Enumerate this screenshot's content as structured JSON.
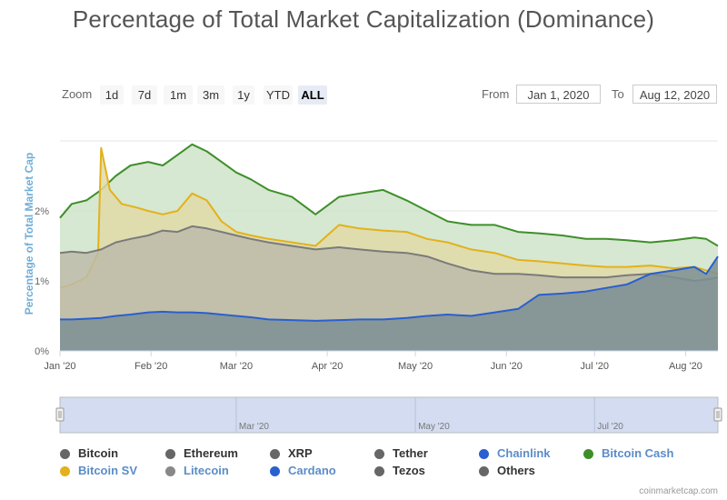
{
  "title": "Percentage of Total Market Capitalization (Dominance)",
  "zoom": {
    "label": "Zoom",
    "buttons": [
      "1d",
      "7d",
      "1m",
      "3m",
      "1y",
      "YTD",
      "ALL"
    ],
    "active": "ALL"
  },
  "range": {
    "from_label": "From",
    "from_value": "Jan 1, 2020",
    "to_label": "To",
    "to_value": "Aug 12, 2020"
  },
  "credit": "coinmarketcap.com",
  "colors": {
    "bitcoin_cash": "#3e8f2a",
    "bitcoin_sv": "#e3b11a",
    "others": "#7a7a7a",
    "cardano": "#2a5fcf",
    "navigator": "#d3dcf0"
  },
  "chart_data": {
    "type": "area",
    "ylabel": "Percentage of Total Market Cap",
    "y_ticks": [
      "0%",
      "1%",
      "2%"
    ],
    "ylim": [
      0,
      3.0
    ],
    "x_ticks": [
      "Jan '20",
      "Feb '20",
      "Mar '20",
      "Apr '20",
      "May '20",
      "Jun '20",
      "Jul '20",
      "Aug '20"
    ],
    "x_range": [
      "2020-01-01",
      "2020-08-12"
    ],
    "navigator_ticks": [
      "Mar '20",
      "May '20",
      "Jul '20"
    ],
    "grid": true,
    "legend_position": "bottom",
    "series": [
      {
        "name": "Bitcoin Cash",
        "color": "#3e8f2a",
        "fill": "#cfe4c9",
        "x": [
          "2020-01-01",
          "2020-01-05",
          "2020-01-10",
          "2020-01-15",
          "2020-01-20",
          "2020-01-25",
          "2020-01-31",
          "2020-02-05",
          "2020-02-10",
          "2020-02-15",
          "2020-02-20",
          "2020-02-25",
          "2020-03-01",
          "2020-03-06",
          "2020-03-12",
          "2020-03-20",
          "2020-03-28",
          "2020-04-05",
          "2020-04-12",
          "2020-04-20",
          "2020-04-28",
          "2020-05-05",
          "2020-05-12",
          "2020-05-20",
          "2020-05-28",
          "2020-06-05",
          "2020-06-12",
          "2020-06-20",
          "2020-06-28",
          "2020-07-05",
          "2020-07-12",
          "2020-07-20",
          "2020-07-28",
          "2020-08-04",
          "2020-08-08",
          "2020-08-12"
        ],
        "values": [
          1.9,
          2.1,
          2.15,
          2.3,
          2.5,
          2.65,
          2.7,
          2.65,
          2.8,
          2.95,
          2.85,
          2.7,
          2.55,
          2.45,
          2.3,
          2.2,
          1.95,
          2.2,
          2.25,
          2.3,
          2.15,
          2.0,
          1.85,
          1.8,
          1.8,
          1.7,
          1.68,
          1.65,
          1.6,
          1.6,
          1.58,
          1.55,
          1.58,
          1.62,
          1.6,
          1.5
        ]
      },
      {
        "name": "Bitcoin SV",
        "color": "#e3b11a",
        "fill": "#e0d9a8",
        "x": [
          "2020-01-01",
          "2020-01-05",
          "2020-01-10",
          "2020-01-14",
          "2020-01-15",
          "2020-01-18",
          "2020-01-22",
          "2020-01-27",
          "2020-01-31",
          "2020-02-05",
          "2020-02-10",
          "2020-02-15",
          "2020-02-20",
          "2020-02-25",
          "2020-03-01",
          "2020-03-06",
          "2020-03-12",
          "2020-03-20",
          "2020-03-28",
          "2020-04-05",
          "2020-04-12",
          "2020-04-20",
          "2020-04-28",
          "2020-05-05",
          "2020-05-12",
          "2020-05-20",
          "2020-05-28",
          "2020-06-05",
          "2020-06-12",
          "2020-06-20",
          "2020-06-28",
          "2020-07-05",
          "2020-07-12",
          "2020-07-20",
          "2020-07-28",
          "2020-08-04",
          "2020-08-08",
          "2020-08-12"
        ],
        "values": [
          0.9,
          0.95,
          1.05,
          1.4,
          2.9,
          2.3,
          2.1,
          2.05,
          2.0,
          1.95,
          2.0,
          2.25,
          2.15,
          1.85,
          1.7,
          1.65,
          1.6,
          1.55,
          1.5,
          1.8,
          1.75,
          1.72,
          1.7,
          1.6,
          1.55,
          1.45,
          1.4,
          1.3,
          1.28,
          1.25,
          1.22,
          1.2,
          1.2,
          1.22,
          1.18,
          1.2,
          1.15,
          1.1
        ]
      },
      {
        "name": "Others",
        "color": "#7a7a7a",
        "fill": "#bdbba9",
        "x": [
          "2020-01-01",
          "2020-01-05",
          "2020-01-10",
          "2020-01-15",
          "2020-01-20",
          "2020-01-25",
          "2020-01-31",
          "2020-02-05",
          "2020-02-10",
          "2020-02-15",
          "2020-02-20",
          "2020-02-25",
          "2020-03-01",
          "2020-03-06",
          "2020-03-12",
          "2020-03-20",
          "2020-03-28",
          "2020-04-05",
          "2020-04-12",
          "2020-04-20",
          "2020-04-28",
          "2020-05-05",
          "2020-05-12",
          "2020-05-20",
          "2020-05-28",
          "2020-06-05",
          "2020-06-12",
          "2020-06-20",
          "2020-06-28",
          "2020-07-05",
          "2020-07-12",
          "2020-07-20",
          "2020-07-28",
          "2020-08-04",
          "2020-08-08",
          "2020-08-12"
        ],
        "values": [
          1.4,
          1.42,
          1.4,
          1.45,
          1.55,
          1.6,
          1.65,
          1.72,
          1.7,
          1.78,
          1.75,
          1.7,
          1.65,
          1.6,
          1.55,
          1.5,
          1.45,
          1.48,
          1.45,
          1.42,
          1.4,
          1.35,
          1.25,
          1.15,
          1.1,
          1.1,
          1.08,
          1.05,
          1.05,
          1.05,
          1.08,
          1.1,
          1.05,
          1.0,
          1.02,
          1.05
        ]
      },
      {
        "name": "Cardano",
        "color": "#2a5fcf",
        "fill": "#7d8f94",
        "x": [
          "2020-01-01",
          "2020-01-05",
          "2020-01-10",
          "2020-01-15",
          "2020-01-20",
          "2020-01-25",
          "2020-01-31",
          "2020-02-05",
          "2020-02-10",
          "2020-02-15",
          "2020-02-20",
          "2020-02-25",
          "2020-03-01",
          "2020-03-06",
          "2020-03-12",
          "2020-03-20",
          "2020-03-28",
          "2020-04-05",
          "2020-04-12",
          "2020-04-20",
          "2020-04-28",
          "2020-05-05",
          "2020-05-12",
          "2020-05-20",
          "2020-05-28",
          "2020-06-05",
          "2020-06-12",
          "2020-06-20",
          "2020-06-28",
          "2020-07-05",
          "2020-07-12",
          "2020-07-20",
          "2020-07-28",
          "2020-08-04",
          "2020-08-08",
          "2020-08-12"
        ],
        "values": [
          0.45,
          0.45,
          0.46,
          0.47,
          0.5,
          0.52,
          0.55,
          0.56,
          0.55,
          0.55,
          0.54,
          0.52,
          0.5,
          0.48,
          0.45,
          0.44,
          0.43,
          0.44,
          0.45,
          0.45,
          0.47,
          0.5,
          0.52,
          0.5,
          0.55,
          0.6,
          0.8,
          0.82,
          0.85,
          0.9,
          0.95,
          1.1,
          1.15,
          1.2,
          1.1,
          1.35
        ]
      }
    ]
  },
  "legend": [
    {
      "label": "Bitcoin",
      "color": "#666666",
      "text_color": "#333333"
    },
    {
      "label": "Ethereum",
      "color": "#666666",
      "text_color": "#333333"
    },
    {
      "label": "XRP",
      "color": "#666666",
      "text_color": "#333333"
    },
    {
      "label": "Tether",
      "color": "#666666",
      "text_color": "#333333"
    },
    {
      "label": "Chainlink",
      "color": "#2a5fcf",
      "text_color": "#5b8cc8"
    },
    {
      "label": "Bitcoin Cash",
      "color": "#3e8f2a",
      "text_color": "#5b8cc8"
    },
    {
      "label": "Bitcoin SV",
      "color": "#e3b11a",
      "text_color": "#5b8cc8"
    },
    {
      "label": "Litecoin",
      "color": "#888888",
      "text_color": "#5b8cc8"
    },
    {
      "label": "Cardano",
      "color": "#2a5fcf",
      "text_color": "#5b8cc8"
    },
    {
      "label": "Tezos",
      "color": "#666666",
      "text_color": "#333333"
    },
    {
      "label": "Others",
      "color": "#666666",
      "text_color": "#333333"
    }
  ]
}
